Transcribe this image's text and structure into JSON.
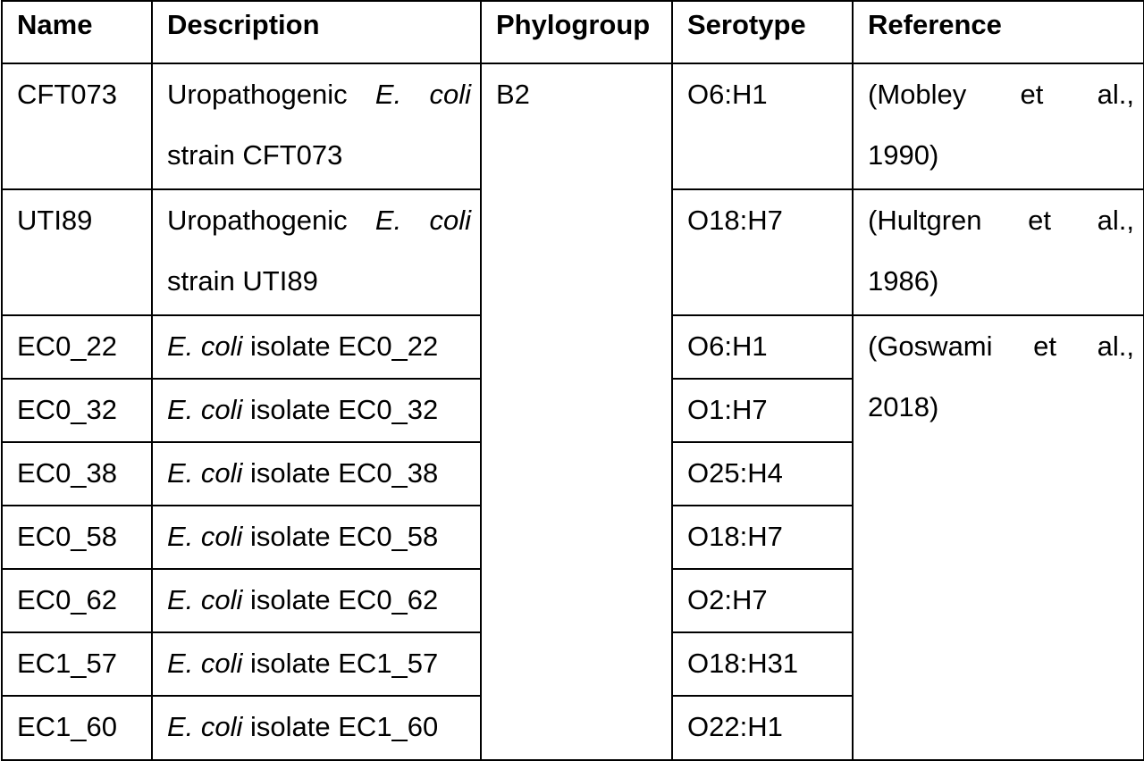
{
  "headers": {
    "name": "Name",
    "description": "Description",
    "phylogroup": "Phylogroup",
    "serotype": "Serotype",
    "reference": "Reference"
  },
  "phylogroup_value": "B2",
  "ecoli": "E. coli",
  "rows": [
    {
      "name": "CFT073",
      "desc_prefix": "Uropathogenic ",
      "desc_suffix": "strain CFT073",
      "serotype": "O6:H1"
    },
    {
      "name": "UTI89",
      "desc_prefix": "Uropathogenic ",
      "desc_suffix": "strain UTI89",
      "serotype": "O18:H7"
    },
    {
      "name": "EC0_22",
      "desc_suffix": " isolate EC0_22",
      "serotype": "O6:H1"
    },
    {
      "name": "EC0_32",
      "desc_suffix": " isolate EC0_32",
      "serotype": "O1:H7"
    },
    {
      "name": "EC0_38",
      "desc_suffix": " isolate EC0_38",
      "serotype": "O25:H4"
    },
    {
      "name": "EC0_58",
      "desc_suffix": " isolate EC0_58",
      "serotype": "O18:H7"
    },
    {
      "name": "EC0_62",
      "desc_suffix": " isolate EC0_62",
      "serotype": "O2:H7"
    },
    {
      "name": "EC1_57",
      "desc_suffix": " isolate EC1_57",
      "serotype": "O18:H31"
    },
    {
      "name": "EC1_60",
      "desc_suffix": " isolate EC1_60",
      "serotype": "O22:H1"
    }
  ],
  "references": {
    "mobley": {
      "author": "(Mobley",
      "et": "et",
      "al": "al.,",
      "year": "1990)"
    },
    "hultgren": {
      "author": "(Hultgren",
      "et": "et",
      "al": "al.,",
      "year": "1986)"
    },
    "goswami": {
      "author": "(Goswami",
      "et": "et",
      "al": "al.,",
      "year": "2018)"
    }
  }
}
